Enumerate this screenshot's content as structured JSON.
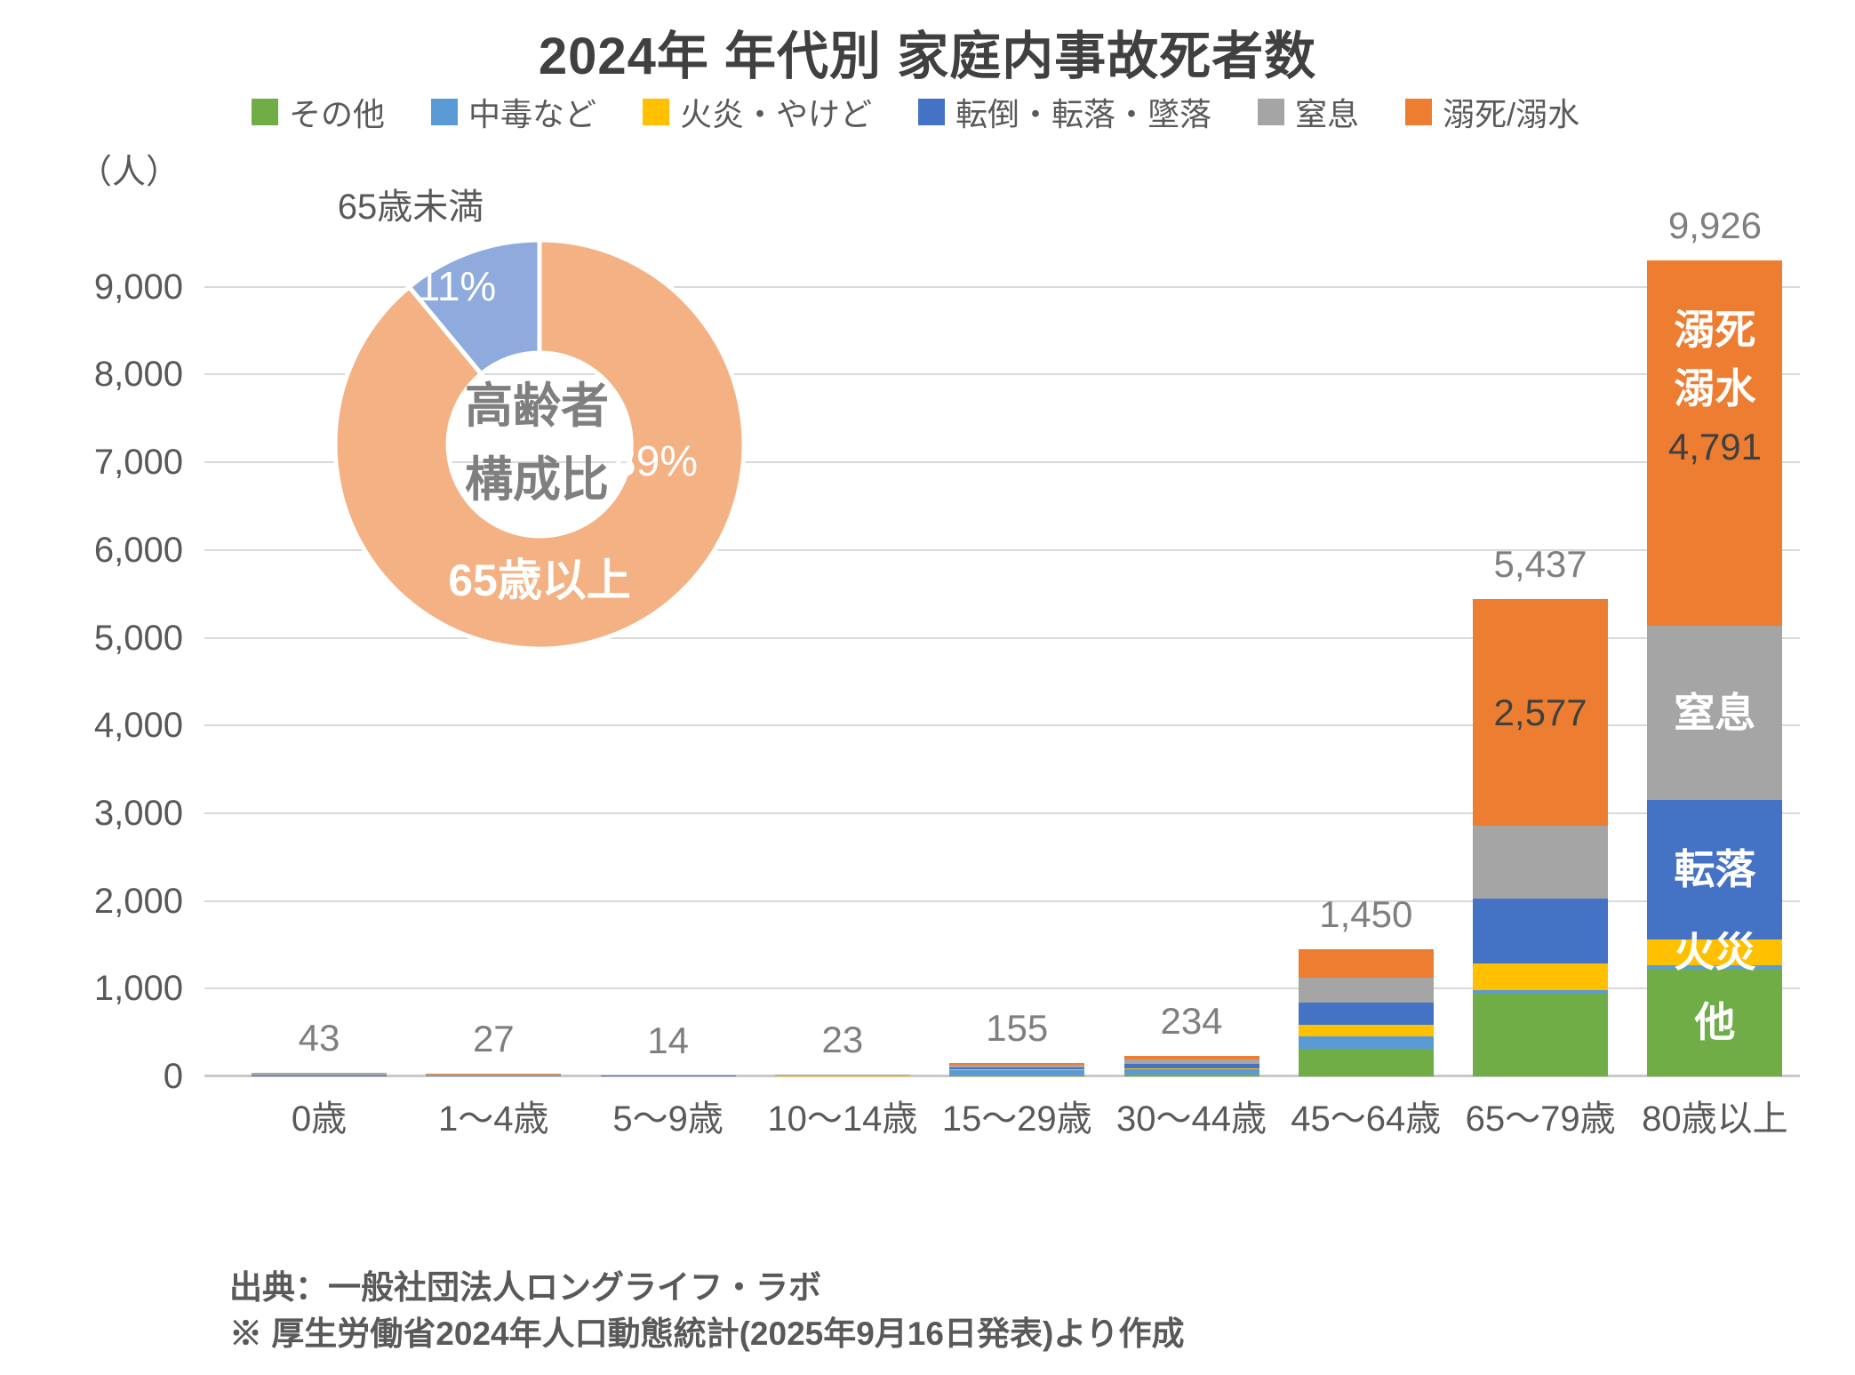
{
  "title": "2024年 年代別 家庭内事故死者数",
  "y_axis": {
    "unit": "（人）",
    "ticks": [
      {
        "label": "0",
        "v": 0
      },
      {
        "label": "1,000",
        "v": 1000
      },
      {
        "label": "2,000",
        "v": 2000
      },
      {
        "label": "3,000",
        "v": 3000
      },
      {
        "label": "4,000",
        "v": 4000
      },
      {
        "label": "5,000",
        "v": 5000
      },
      {
        "label": "6,000",
        "v": 6000
      },
      {
        "label": "7,000",
        "v": 7000
      },
      {
        "label": "8,000",
        "v": 8000
      },
      {
        "label": "9,000",
        "v": 9000
      }
    ]
  },
  "footer": {
    "line1": "出典：一般社団法人ロングライフ・ラボ",
    "line2": "※ 厚生労働省2024年人口動態統計(2025年9月16日発表)より作成"
  },
  "chart_data": [
    {
      "type": "bar",
      "stacked": true,
      "title": "2024年 年代別 家庭内事故死者数",
      "ylabel": "（人）",
      "ylim": [
        0,
        9000
      ],
      "grid": true,
      "legend_position": "top",
      "categories": [
        "0歳",
        "1〜4歳",
        "5〜9歳",
        "10〜14歳",
        "15〜29歳",
        "30〜44歳",
        "45〜64歳",
        "65〜79歳",
        "80歳以上"
      ],
      "totals": [
        43,
        27,
        14,
        23,
        155,
        234,
        1450,
        5437,
        9926
      ],
      "total_labels": [
        "43",
        "27",
        "14",
        "23",
        "155",
        "234",
        "1,450",
        "5,437",
        "9,926"
      ],
      "series": [
        {
          "name": "その他",
          "color": "#70AD47",
          "values": [
            2,
            4,
            2,
            3,
            15,
            25,
            315,
            940,
            1230
          ]
        },
        {
          "name": "中毒など",
          "color": "#5B9BD5",
          "values": [
            1,
            2,
            1,
            2,
            55,
            60,
            145,
            40,
            35
          ]
        },
        {
          "name": "火炎・やけど",
          "color": "#FFC000",
          "values": [
            1,
            2,
            1,
            1,
            8,
            10,
            130,
            310,
            295
          ]
        },
        {
          "name": "転倒・転落・墜落",
          "color": "#4472C4",
          "values": [
            2,
            3,
            2,
            4,
            25,
            50,
            250,
            740,
            1590
          ]
        },
        {
          "name": "窒息",
          "color": "#A5A5A5",
          "values": [
            35,
            6,
            4,
            6,
            25,
            45,
            290,
            830,
            1985
          ]
        },
        {
          "name": "溺死/溺水",
          "color": "#ED7D31",
          "values": [
            2,
            10,
            4,
            7,
            27,
            44,
            320,
            2577,
            4791
          ]
        }
      ],
      "annotations": [
        {
          "bar": 7,
          "text": "2,577",
          "v": 4148,
          "style": "dark"
        },
        {
          "bar": 8,
          "text": "溺死",
          "v": 8511,
          "style": "white"
        },
        {
          "bar": 8,
          "text": "溺水",
          "v": 7843,
          "style": "white"
        },
        {
          "bar": 8,
          "text": "4,791",
          "v": 7174,
          "style": "dark"
        },
        {
          "bar": 8,
          "text": "窒息",
          "v": 4144,
          "style": "white"
        },
        {
          "bar": 8,
          "text": "転落",
          "v": 2361,
          "style": "white"
        },
        {
          "bar": 8,
          "text": "火災",
          "v": 1418,
          "style": "white"
        },
        {
          "bar": 8,
          "text": "他",
          "v": 618,
          "style": "white"
        }
      ]
    },
    {
      "type": "pie",
      "subtype": "donut",
      "center_label": [
        "高齢者",
        "構成比"
      ],
      "start_angle_deg": 0,
      "direction": "clockwise",
      "slices": [
        {
          "label": "65歳以上",
          "value": 89,
          "pct_label": "89%",
          "color": "#F4B183"
        },
        {
          "label": "65歳未満",
          "value": 11,
          "pct_label": "11%",
          "color": "#8FAADC"
        }
      ]
    }
  ]
}
